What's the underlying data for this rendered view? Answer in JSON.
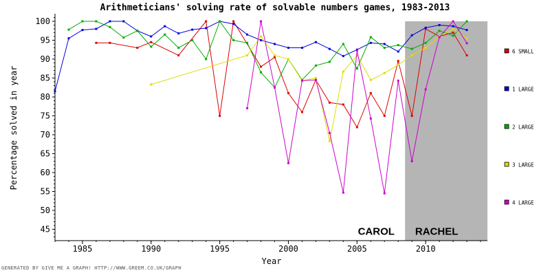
{
  "footer": "GENERATED BY GIVE ME A GRAPH!  HTTP://WWW.GREEM.CO.UK/GRAPH",
  "chart_data": {
    "type": "line",
    "title": "Arithmeticians' solving rate of solvable numbers games, 1983-2013",
    "xlabel": "Year",
    "ylabel": "Percentage solved in year",
    "xlim": [
      1983,
      2014.5
    ],
    "ylim": [
      42,
      102
    ],
    "x_ticks": [
      "1985",
      "1990",
      "1995",
      "2000",
      "2005",
      "2010"
    ],
    "y_ticks": [
      "45",
      "50",
      "55",
      "60",
      "65",
      "70",
      "75",
      "80",
      "85",
      "90",
      "95",
      "100"
    ],
    "grid": false,
    "legend_position": "right",
    "shaded_region": {
      "x_start": 2008.5,
      "x_end": 2014.5,
      "color": "#b5b5b5"
    },
    "annotations": [
      {
        "text": "CAROL",
        "x": 2006.4,
        "y": 44.5
      },
      {
        "text": "RACHEL",
        "x": 2010.8,
        "y": 44.5
      }
    ],
    "series": [
      {
        "name": "6 SMALL",
        "color": "#dd0000",
        "points": [
          [
            1986,
            94.3
          ],
          [
            1987,
            94.3
          ],
          [
            1989,
            93
          ],
          [
            1990,
            94.5
          ],
          [
            1992,
            91
          ],
          [
            1994,
            100
          ],
          [
            1995,
            75
          ],
          [
            1996,
            100
          ],
          [
            1998,
            88
          ],
          [
            1999,
            90.5
          ],
          [
            2000,
            81
          ],
          [
            2001,
            76
          ],
          [
            2002,
            84.5
          ],
          [
            2003,
            78.5
          ],
          [
            2004,
            78
          ],
          [
            2005,
            72
          ],
          [
            2006,
            81
          ],
          [
            2007,
            75
          ],
          [
            2008,
            89.5
          ],
          [
            2009,
            75
          ],
          [
            2010,
            98
          ],
          [
            2011,
            96
          ],
          [
            2012,
            97
          ],
          [
            2013,
            91
          ]
        ]
      },
      {
        "name": "1 LARGE",
        "color": "#0000dd",
        "points": [
          [
            1983,
            81.5
          ],
          [
            1984,
            95.5
          ],
          [
            1985,
            97.7
          ],
          [
            1986,
            98
          ],
          [
            1987,
            100
          ],
          [
            1988,
            100
          ],
          [
            1989,
            97.5
          ],
          [
            1990,
            96
          ],
          [
            1991,
            98.7
          ],
          [
            1992,
            96.8
          ],
          [
            1993,
            97.8
          ],
          [
            1994,
            98.2
          ],
          [
            1995,
            100
          ],
          [
            1996,
            99.3
          ],
          [
            1997,
            96.5
          ],
          [
            1998,
            95
          ],
          [
            1999,
            94
          ],
          [
            2000,
            93
          ],
          [
            2001,
            93
          ],
          [
            2002,
            94.5
          ],
          [
            2003,
            92.7
          ],
          [
            2004,
            90.8
          ],
          [
            2005,
            92.5
          ],
          [
            2006,
            94.3
          ],
          [
            2007,
            94
          ],
          [
            2008,
            92
          ],
          [
            2009,
            96.3
          ],
          [
            2010,
            98.3
          ],
          [
            2011,
            99
          ],
          [
            2012,
            98.7
          ],
          [
            2013,
            97.7
          ]
        ]
      },
      {
        "name": "2 LARGE",
        "color": "#00aa00",
        "points": [
          [
            1984,
            97.8
          ],
          [
            1985,
            100
          ],
          [
            1986,
            100
          ],
          [
            1987,
            98.5
          ],
          [
            1988,
            95.7
          ],
          [
            1989,
            97.5
          ],
          [
            1990,
            93.3
          ],
          [
            1991,
            96.5
          ],
          [
            1992,
            93
          ],
          [
            1993,
            95
          ],
          [
            1994,
            90
          ],
          [
            1995,
            100
          ],
          [
            1996,
            95
          ],
          [
            1997,
            94.3
          ],
          [
            1998,
            86.5
          ],
          [
            1999,
            82.5
          ],
          [
            2000,
            90
          ],
          [
            2001,
            84.5
          ],
          [
            2002,
            88.3
          ],
          [
            2003,
            89.3
          ],
          [
            2004,
            94
          ],
          [
            2005,
            87.5
          ],
          [
            2006,
            95.8
          ],
          [
            2007,
            93
          ],
          [
            2008,
            93.7
          ],
          [
            2009,
            92.7
          ],
          [
            2010,
            94.3
          ],
          [
            2011,
            97.5
          ],
          [
            2012,
            96.2
          ],
          [
            2013,
            100
          ]
        ]
      },
      {
        "name": "3 LARGE",
        "color": "#dddd00",
        "points": [
          [
            1990,
            83.3
          ],
          [
            1997,
            91
          ],
          [
            1998,
            96
          ],
          [
            1999,
            91
          ],
          [
            2000,
            90
          ],
          [
            2001,
            84.3
          ],
          [
            2002,
            85
          ],
          [
            2003,
            68.3
          ],
          [
            2004,
            86.7
          ],
          [
            2005,
            91
          ],
          [
            2006,
            84.5
          ],
          [
            2007,
            86.3
          ],
          [
            2008,
            88.5
          ],
          [
            2009,
            91
          ],
          [
            2010,
            93
          ],
          [
            2011,
            96
          ],
          [
            2012,
            98
          ],
          [
            2013,
            95.5
          ]
        ]
      },
      {
        "name": "4 LARGE",
        "color": "#cc00cc",
        "points": [
          [
            1997,
            77
          ],
          [
            1998,
            100
          ],
          [
            1999,
            82.5
          ],
          [
            2000,
            62.5
          ],
          [
            2001,
            84.3
          ],
          [
            2002,
            84.5
          ],
          [
            2003,
            70.5
          ],
          [
            2004,
            54.7
          ],
          [
            2005,
            92.3
          ],
          [
            2006,
            74.3
          ],
          [
            2007,
            54.5
          ],
          [
            2008,
            84.3
          ],
          [
            2009,
            63
          ],
          [
            2010,
            82
          ],
          [
            2011,
            95.8
          ],
          [
            2012,
            100
          ],
          [
            2013,
            94.2
          ]
        ]
      }
    ]
  }
}
